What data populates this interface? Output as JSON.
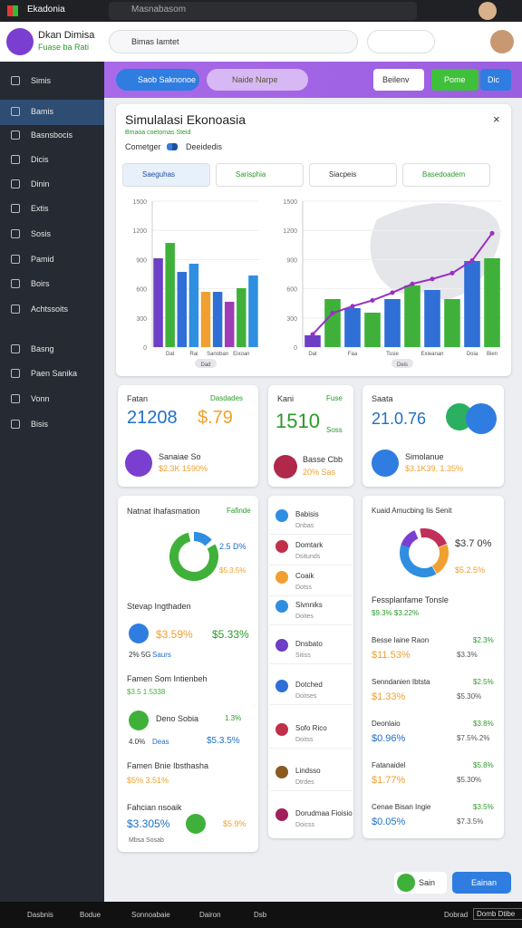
{
  "browser": {
    "tab": "Ekadonia",
    "search": "Masnabasom"
  },
  "app": {
    "name": "Dkan Dimisa",
    "subtitle": "Fuase ba Rati",
    "search": "Bimas Iamtet"
  },
  "sidebar": [
    "Simis",
    "Bamis",
    "Basnsbocis",
    "Dicis",
    "Dinin",
    "Extis",
    "Sosis",
    "Pamid",
    "Boirs",
    "Achtssoits",
    "Basng",
    "Paen Sanika",
    "Vonn",
    "Bisis"
  ],
  "toolbar": {
    "chips": [
      "Saob Saknonoe",
      "Naide Narpe"
    ],
    "buttons": [
      "Beilenv",
      "Pome",
      "Dic"
    ]
  },
  "panel": {
    "title": "Simulalasi Ekonoasia",
    "subtitle": "Bmaoa coetomas Steid",
    "legend": [
      "Cometger",
      "Deeidedis"
    ],
    "filters": [
      "Saeguhas",
      "Sarisphia",
      "Siacpeis",
      "Basedoadem"
    ]
  },
  "chart_data": [
    {
      "type": "bar",
      "note": "Dad",
      "categories": [
        null,
        "Dat",
        null,
        "Rai",
        null,
        "Sanoban",
        null,
        "Eixoan",
        null
      ],
      "values": [
        913,
        1071,
        773,
        857,
        568,
        568,
        466,
        606,
        736
      ],
      "colors": [
        "#6c3fc4",
        "#3fb13a",
        "#2f6fd6",
        "#2f8ee0",
        "#f0a030",
        "#2f6fd6",
        "#a03cb8",
        "#3fb13a",
        "#2f8ee0"
      ],
      "ylim": [
        0,
        1500
      ],
      "yticks": [
        0,
        300,
        600,
        900,
        1200,
        1500
      ],
      "grid": true
    },
    {
      "type": "bar-line",
      "note": "Deis",
      "categories": [
        "Dat",
        null,
        "Faa",
        null,
        "Tssie",
        null,
        "Exieanan",
        null,
        "Doia",
        "Bien"
      ],
      "values": [
        121,
        494,
        401,
        354,
        494,
        634,
        587,
        494,
        885,
        913
      ],
      "colors": [
        "#6c3fc4",
        "#3fb13a",
        "#2f6fd6",
        "#3fb13a",
        "#2f6fd6",
        "#3fb13a",
        "#2f6fd6",
        "#3fb13a",
        "#2f6fd6",
        "#3fb13a"
      ],
      "line": {
        "color": "#9b2fc4",
        "values": [
          130,
          350,
          420,
          480,
          560,
          650,
          700,
          760,
          890,
          1170
        ]
      },
      "ylim": [
        0,
        1500
      ],
      "yticks": [
        0,
        300,
        600,
        900,
        1200,
        1500
      ],
      "grid": true
    }
  ],
  "stats": [
    {
      "title": "Fatan",
      "tag": "Dasdades",
      "value": "21208",
      "value2": "$.79",
      "item": "Sanaiae So",
      "detail": "$2.3K 1590%"
    },
    {
      "title": "Kani",
      "tag": "Fuse",
      "value": "1510",
      "value2": "Soss",
      "item": "Basse Cbb",
      "detail": "20% Sas"
    },
    {
      "title": "Saata",
      "value": "21.0.76",
      "item": "Simolanue",
      "detail": "$3.1K39. 1.35%"
    }
  ],
  "summary": {
    "title": "Natnat Ihafasmation",
    "tag": "Fafinde",
    "donut": [
      "2.5 D%",
      "$5.3.5%"
    ],
    "section": "Stevap Ingthaden",
    "row1": [
      "$3.59%",
      "$5.33%",
      "2% 5G",
      "Saurs"
    ],
    "section2": "Famen Som Intienbeh",
    "row2": "$3.5 1.5338",
    "row3": [
      "Deno Sobia",
      "1.3%",
      "4.0%",
      "Deas",
      "$5.3.5%"
    ],
    "section3": "Famen Bnie Ibsthasha",
    "row4": "$5% 3.51%",
    "section4": "Fahcian nsoaik",
    "row5": [
      "$3.305%",
      "$5.9%"
    ],
    "footer": "Mbsa Sosab"
  },
  "middle": [
    {
      "name": "Babisis",
      "sub": "Dnbas",
      "color": "#2f8ee0"
    },
    {
      "name": "Domtark",
      "sub": "Dsitunds",
      "color": "#c0304a"
    },
    {
      "name": "Coaik",
      "sub": "Dotss",
      "color": "#f0a030"
    },
    {
      "name": "Sivnniks",
      "sub": "Doites",
      "color": "#2f8ee0"
    },
    {
      "name": "Dnsbato",
      "sub": "Sitiss",
      "color": "#6c3fc4"
    },
    {
      "name": "Dotched",
      "sub": "Doitses",
      "color": "#2f6fd6"
    },
    {
      "name": "Sofo Rico",
      "sub": "Doitss",
      "color": "#c0304a"
    },
    {
      "name": "Lindsso",
      "sub": "Dtrdes",
      "color": "#8a5a20"
    },
    {
      "name": "Dorudmaa Fioisio",
      "sub": "Doicss",
      "color": "#a0205a"
    }
  ],
  "right": {
    "title": "Kuaid Amucbing Iis Senit",
    "donut": [
      "$3.7 0%",
      "$5.2.5%"
    ],
    "section": "Fessplanfame Tonsle",
    "section_value": "$9.3% $3.22%",
    "rows": [
      {
        "label": "Besse Iaine Raon",
        "value": "$11.53%",
        "right": "$2.3%",
        "right2": "$3.3%"
      },
      {
        "label": "Senndanien Ibtsta",
        "value": "$1.33%",
        "right": "$2.5%",
        "right2": "$5.30%"
      },
      {
        "label": "Deonlaio",
        "value": "$0.96%",
        "right": "$3.8%",
        "right2": "$7.5%.2%"
      },
      {
        "label": "Fatanaidel",
        "value": "$1.77%",
        "right": "$5.8%",
        "right2": "$5.30%"
      },
      {
        "label": "Cenae Bisan Ingie",
        "value": "$0.05%",
        "right": "$3.5%",
        "right2": "$7.3.5%"
      }
    ]
  },
  "actions": [
    "Sain",
    "Eainan"
  ],
  "taskbar": [
    "Dasbnis",
    "Bodue",
    "Sonnoabaie",
    "Dairon",
    "Dsb",
    "Dobrad",
    "Domb Dtibe"
  ]
}
